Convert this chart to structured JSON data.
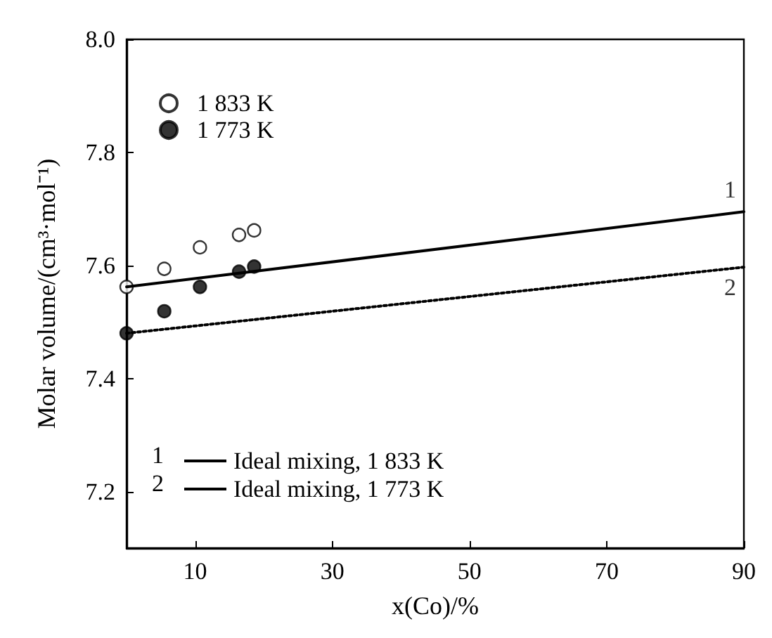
{
  "chart_data": {
    "type": "scatter",
    "xlabel": "x(Co)/%",
    "ylabel": "Molar volume/(cm³·mol⁻¹)",
    "xlim": [
      0,
      90
    ],
    "xticks": [
      10,
      30,
      50,
      70,
      90
    ],
    "ylim": [
      7.1,
      8.0
    ],
    "yticks": [
      {
        "value": 7.2,
        "label": "7.2"
      },
      {
        "value": 7.4,
        "label": "7.4"
      },
      {
        "value": 7.6,
        "label": "7.6"
      },
      {
        "value": 7.8,
        "label": "7.8"
      },
      {
        "value": 8.0,
        "label": "8.0"
      }
    ],
    "grid": false,
    "legend": "left",
    "series": [
      {
        "name": "1 833 K",
        "marker": "circle",
        "color": "#ffffff",
        "x": [
          0,
          5.5,
          10.7,
          16.4,
          18.6
        ],
        "values": [
          7.562,
          7.594,
          7.632,
          7.654,
          7.662
        ]
      },
      {
        "name": "1 773 K",
        "marker": "circle",
        "color": "#000000",
        "x": [
          0,
          5.5,
          10.7,
          16.4,
          18.6
        ],
        "values": [
          7.48,
          7.519,
          7.562,
          7.589,
          7.598
        ]
      },
      {
        "name": "Ideal mixing, 1 833 K",
        "type": "line",
        "marker": "none",
        "color": "#000000",
        "line_style": "solid",
        "x": [
          0,
          90
        ],
        "values": [
          7.562,
          7.695
        ]
      },
      {
        "name": "Ideal mixing, 1 773 K",
        "type": "line",
        "marker": "none",
        "color": "#000000",
        "line_style": "dotted",
        "x": [
          0,
          90
        ],
        "values": [
          7.48,
          7.597
        ]
      }
    ],
    "annotations": [
      {
        "text": "1",
        "x": 90,
        "y": 7.695
      },
      {
        "text": "2",
        "x": 90,
        "y": 7.597
      }
    ]
  }
}
